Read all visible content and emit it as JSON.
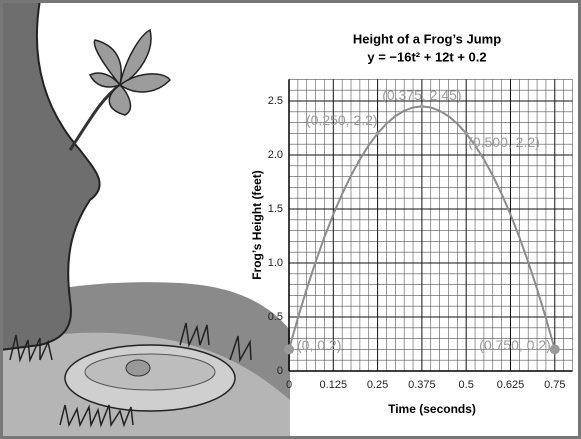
{
  "chart_data": {
    "type": "line",
    "title": "Height of a Frog’s Jump",
    "subtitle": "y = −16t² + 12t + 0.2",
    "x_label": "Time (seconds)",
    "y_label": "Frog’s Height (feet)",
    "xlim": [
      0,
      0.8
    ],
    "ylim": [
      0,
      2.7
    ],
    "xticks": [
      0,
      0.125,
      0.25,
      0.375,
      0.5,
      0.625,
      0.75
    ],
    "yticks": [
      0,
      0.5,
      {
        "value": 1,
        "label": "1.0"
      },
      1.5,
      {
        "value": 2,
        "label": "2.0"
      },
      2.5
    ],
    "minor_xticks": [
      0.025,
      0.05,
      0.075,
      0.1,
      0.15,
      0.175,
      0.2,
      0.225,
      0.275,
      0.3,
      0.325,
      0.35,
      0.4,
      0.425,
      0.45,
      0.475,
      0.525,
      0.55,
      0.575,
      0.6,
      0.65,
      0.675,
      0.7,
      0.725,
      0.775,
      0.8
    ],
    "minor_yticks": [
      0.1,
      0.2,
      0.3,
      0.4,
      0.6,
      0.7,
      0.8,
      0.9,
      1.1,
      1.2,
      1.3,
      1.4,
      1.6,
      1.7,
      1.8,
      1.9,
      2.1,
      2.2,
      2.3,
      2.4,
      2.6,
      2.7
    ],
    "grid": true,
    "series": [
      {
        "color": "#8c8c8c",
        "x": [
          0,
          0.025,
          0.05,
          0.075,
          0.1,
          0.125,
          0.15,
          0.175,
          0.2,
          0.225,
          0.25,
          0.275,
          0.3,
          0.325,
          0.35,
          0.375,
          0.4,
          0.425,
          0.45,
          0.475,
          0.5,
          0.525,
          0.55,
          0.575,
          0.6,
          0.625,
          0.65,
          0.675,
          0.7,
          0.725,
          0.75
        ],
        "values": [
          0.2,
          0.49,
          0.76,
          1.01,
          1.24,
          1.45,
          1.64,
          1.81,
          1.96,
          2.09,
          2.2,
          2.29,
          2.36,
          2.41,
          2.44,
          2.45,
          2.44,
          2.41,
          2.36,
          2.29,
          2.2,
          2.09,
          1.96,
          1.81,
          1.64,
          1.45,
          1.24,
          1.01,
          0.76,
          0.49,
          0.2
        ]
      },
      {
        "color": "#9a9a9a",
        "x": [
          0,
          0.25,
          0.375,
          0.5,
          0.75
        ],
        "values": [
          0.2,
          2.2,
          2.45,
          2.2,
          0.2
        ],
        "value_labels": [
          "(0, 0.2)",
          "(0.250, 2.2)",
          "(0.375, 2.45)",
          "(0.500, 2.2)",
          "(0.750, 0.2)"
        ]
      }
    ]
  }
}
